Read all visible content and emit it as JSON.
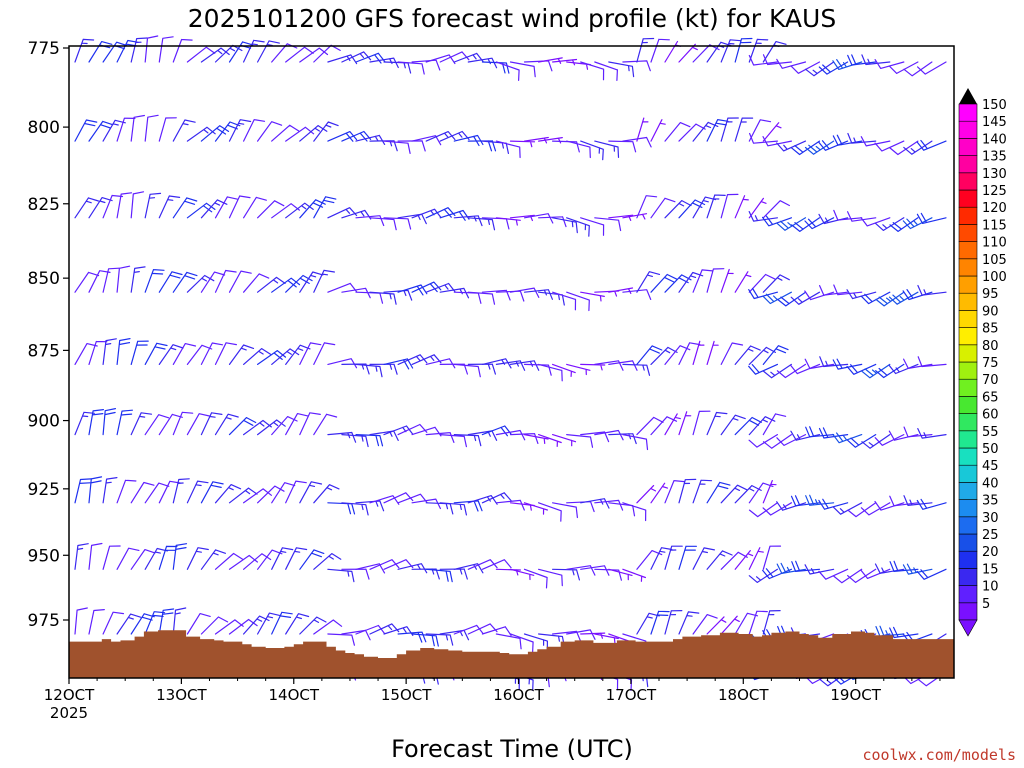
{
  "chart_data": {
    "type": "wind_profile",
    "title": "2025101200 GFS forecast wind profile (kt) for KAUS",
    "xlabel": "Forecast Time (UTC)",
    "x_ticks": [
      "12OCT",
      "13OCT",
      "14OCT",
      "15OCT",
      "16OCT",
      "17OCT",
      "18OCT",
      "19OCT"
    ],
    "x_year": "2025",
    "y_ticks": [
      "775",
      "800",
      "825",
      "850",
      "875",
      "900",
      "925",
      "950",
      "975"
    ],
    "y_range_hpa": [
      775,
      995
    ],
    "x_range_hours": [
      0,
      189
    ],
    "colorbar": {
      "title": "kt",
      "levels": [
        5,
        10,
        15,
        20,
        25,
        30,
        35,
        40,
        45,
        50,
        55,
        60,
        65,
        70,
        75,
        80,
        85,
        90,
        95,
        100,
        105,
        110,
        115,
        120,
        125,
        130,
        135,
        140,
        145,
        150
      ],
      "labels": [
        "5",
        "10",
        "15",
        "20",
        "25",
        "30",
        "35",
        "40",
        "45",
        "50",
        "55",
        "60",
        "65",
        "70",
        "75",
        "80",
        "85",
        "90",
        "95",
        "100",
        "105",
        "110",
        "115",
        "120",
        "125",
        "130",
        "135",
        "140",
        "145",
        "150"
      ],
      "colors": [
        "#7a10ff",
        "#6020ff",
        "#3a28f0",
        "#1e30f0",
        "#1850e8",
        "#1c6cf0",
        "#1c8cf0",
        "#20aae8",
        "#18c8d8",
        "#18e0c0",
        "#20e890",
        "#30e860",
        "#48e830",
        "#70f020",
        "#a0f010",
        "#d8f000",
        "#ffee00",
        "#ffd800",
        "#ffbb00",
        "#ff9f00",
        "#ff8400",
        "#ff6a00",
        "#ff4a00",
        "#ff2a00",
        "#ff0020",
        "#ff0060",
        "#ff00a0",
        "#ff00c8",
        "#ff00e8",
        "#ff00ff"
      ]
    },
    "terrain": {
      "color": "#a0522d",
      "hours": [
        0,
        6,
        7,
        9,
        11,
        14,
        16,
        19,
        22,
        25,
        28,
        31,
        33,
        35,
        37,
        39,
        42,
        46,
        48,
        50,
        53,
        55,
        57,
        59,
        61,
        63,
        66,
        68,
        70,
        72,
        75,
        78,
        81,
        84,
        87,
        90,
        92,
        94,
        96,
        98,
        100,
        102,
        105,
        108,
        112,
        117,
        121,
        123,
        125,
        127,
        129,
        131,
        135,
        139,
        143,
        146,
        148,
        150,
        153,
        156,
        158,
        160,
        163,
        167,
        170,
        172,
        174,
        176,
        179,
        184,
        189
      ],
      "surface_hpa": [
        983.5,
        983.5,
        982.5,
        983.5,
        983,
        981.5,
        979.5,
        979,
        979,
        981.5,
        982.5,
        983,
        983.5,
        983.5,
        984.5,
        985.5,
        986,
        985.5,
        984.5,
        983.5,
        983.5,
        985.5,
        987,
        988,
        988.5,
        989.5,
        990,
        990,
        988.5,
        987,
        986,
        986.5,
        987,
        987.5,
        987.5,
        987.5,
        988,
        988.5,
        988.5,
        987.5,
        986.5,
        985.5,
        983.5,
        983,
        984,
        983,
        983.5,
        983.5,
        983.5,
        983.5,
        982.5,
        981.5,
        981,
        980,
        980.5,
        981.5,
        981,
        980,
        979.5,
        980.5,
        981,
        982,
        980.5,
        979.5,
        980,
        981,
        981,
        982.5,
        982.5,
        982.5,
        982.5
      ]
    },
    "winds": {
      "time_step_hours": 3,
      "times_hours": [
        0,
        3,
        6,
        9,
        12,
        15,
        18,
        21,
        24,
        27,
        30,
        33,
        36,
        39,
        42,
        45,
        48,
        51,
        54,
        57,
        60,
        63,
        66,
        69,
        72,
        75,
        78,
        81,
        84,
        87,
        90,
        93,
        96,
        99,
        102,
        105,
        108,
        111,
        114,
        117,
        120,
        123,
        126,
        129,
        132,
        135,
        138,
        141,
        144,
        147,
        150,
        153,
        156,
        159,
        162,
        165,
        168,
        171,
        174,
        177,
        180,
        183,
        186,
        189
      ],
      "levels_hpa": [
        775,
        800,
        825,
        850,
        875,
        900,
        925,
        950,
        975,
        990
      ],
      "regimes": [
        {
          "from_hour": 0,
          "to_hour": 24,
          "direction_deg": 20,
          "speed_kt_low": 10,
          "speed_kt_high": 22
        },
        {
          "from_hour": 24,
          "to_hour": 54,
          "direction_deg": 40,
          "speed_kt_low": 10,
          "speed_kt_high": 20
        },
        {
          "from_hour": 54,
          "to_hour": 90,
          "direction_deg": 80,
          "speed_kt_low": 12,
          "speed_kt_high": 20
        },
        {
          "from_hour": 90,
          "to_hour": 120,
          "direction_deg": 95,
          "speed_kt_low": 8,
          "speed_kt_high": 15
        },
        {
          "from_hour": 120,
          "to_hour": 150,
          "direction_deg": 30,
          "speed_kt_low": 8,
          "speed_kt_high": 20
        },
        {
          "from_hour": 150,
          "to_hour": 189,
          "direction_deg": 250,
          "speed_kt_low": 10,
          "speed_kt_high": 25
        }
      ]
    }
  },
  "footer": {
    "credit": "coolwx.com/models"
  }
}
